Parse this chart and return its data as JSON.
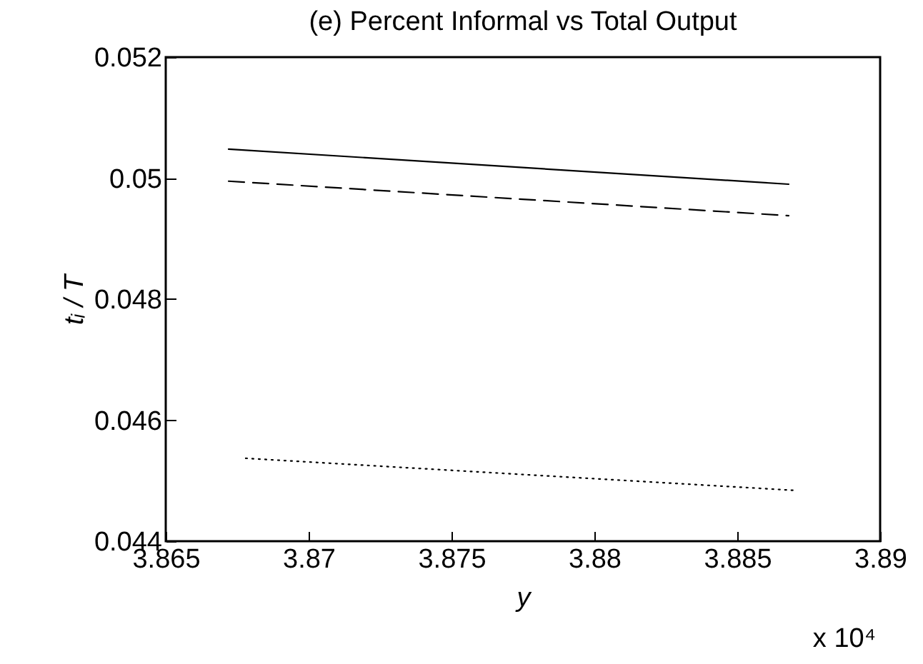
{
  "chart_data": {
    "type": "line",
    "title": "(e)  Percent Informal vs Total Output",
    "xlabel": "y",
    "ylabel": "tᵢ / T",
    "annotations": [
      "x 10⁴"
    ],
    "xlim": [
      3.865,
      3.89
    ],
    "xticks": [
      3.865,
      3.87,
      3.875,
      3.88,
      3.885,
      3.89
    ],
    "ylim": [
      0.044,
      0.052
    ],
    "yticks": [
      0.044,
      0.046,
      0.048,
      0.05,
      0.052
    ],
    "grid": false,
    "series": [
      {
        "color": "#000000",
        "line_style": "solid",
        "x": [
          3.8672,
          3.8868
        ],
        "values": [
          0.05048,
          0.0499
        ]
      },
      {
        "color": "#000000",
        "line_style": "dashed",
        "x": [
          3.8672,
          3.8868
        ],
        "values": [
          0.04995,
          0.04938
        ]
      },
      {
        "color": "#000000",
        "line_style": "dotted",
        "x": [
          3.8678,
          3.887
        ],
        "values": [
          0.04537,
          0.04484
        ]
      }
    ]
  }
}
